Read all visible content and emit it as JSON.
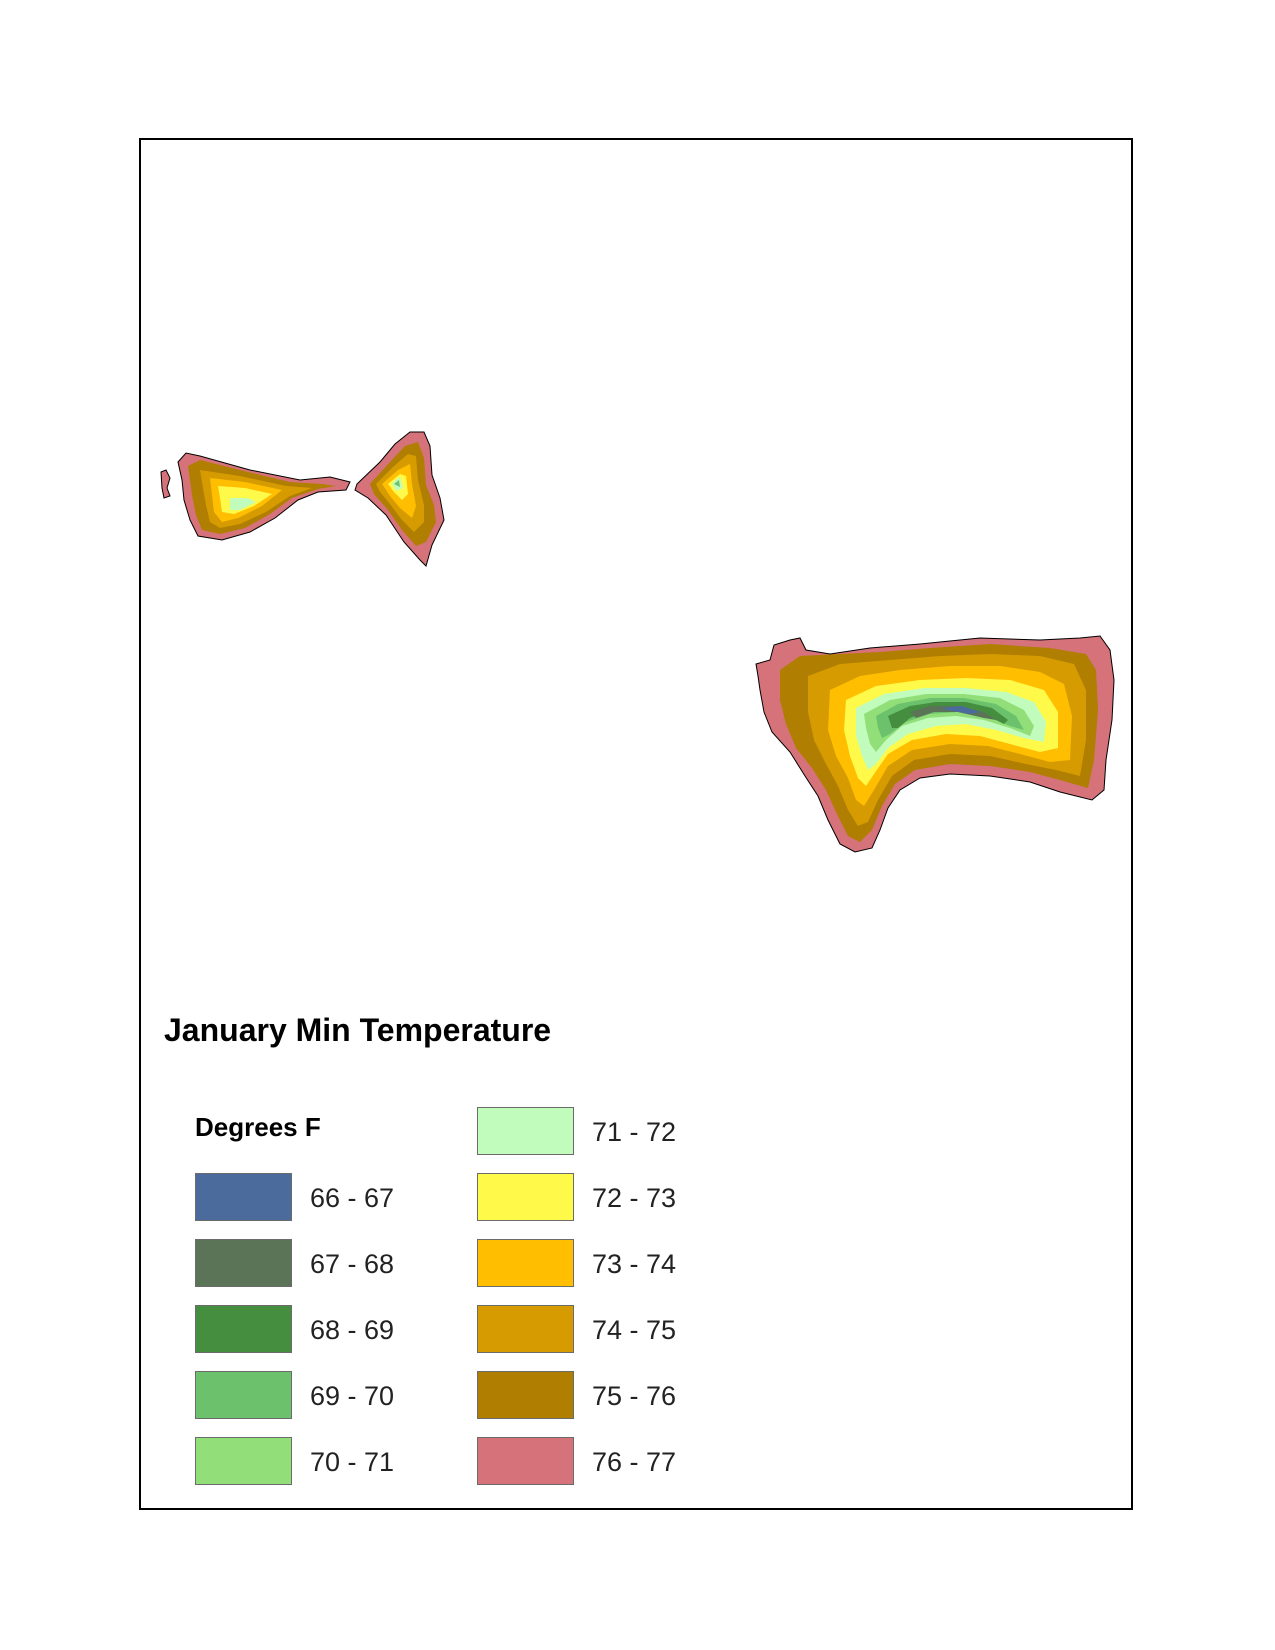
{
  "map": {
    "title": "January Min Temperature",
    "legend": {
      "subtitle": "Degrees F",
      "items": [
        {
          "label": "66 - 67",
          "color": "#4a6b9c"
        },
        {
          "label": "67 - 68",
          "color": "#5b7356"
        },
        {
          "label": "68 - 69",
          "color": "#458e3f"
        },
        {
          "label": "69 - 70",
          "color": "#6cc16d"
        },
        {
          "label": "70 - 71",
          "color": "#92df7a"
        },
        {
          "label": "71 - 72",
          "color": "#c1fcbd"
        },
        {
          "label": "72 - 73",
          "color": "#fffa4a"
        },
        {
          "label": "73 - 74",
          "color": "#ffbf00"
        },
        {
          "label": "74 - 75",
          "color": "#d69b00"
        },
        {
          "label": "75 - 76",
          "color": "#b07e00"
        },
        {
          "label": "76 - 77",
          "color": "#d6727a"
        }
      ]
    }
  }
}
